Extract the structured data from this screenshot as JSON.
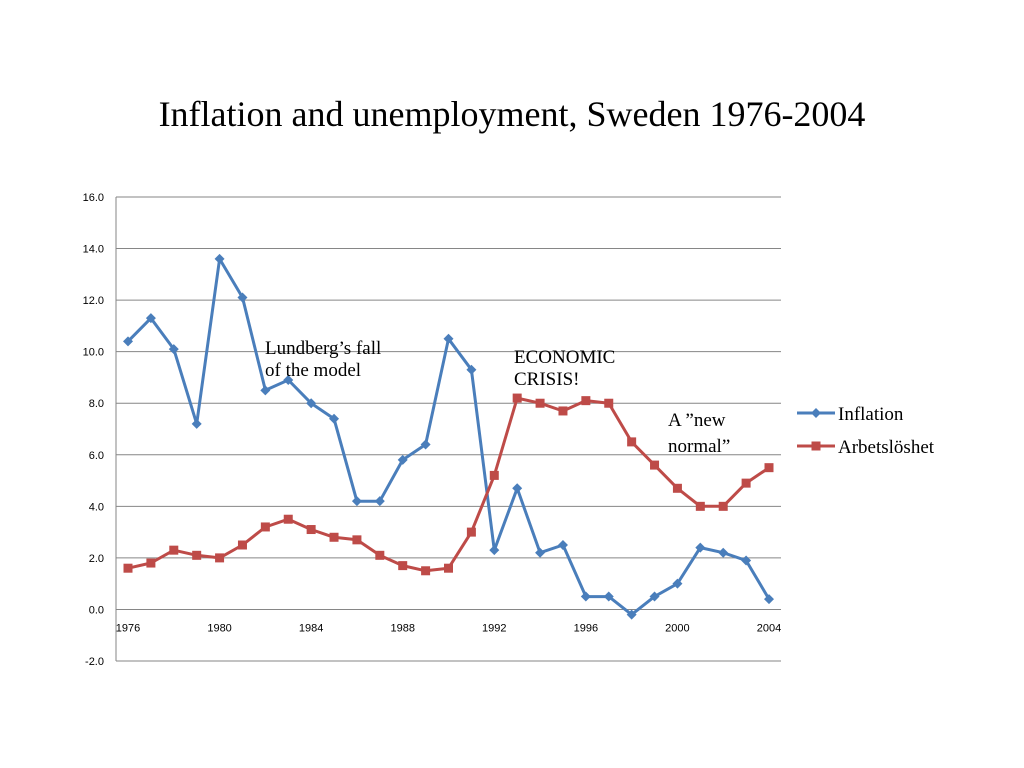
{
  "slide": {
    "title": "Inflation and unemployment, Sweden 1976-2004"
  },
  "chart_data": {
    "type": "line",
    "title": "Inflation and unemployment, Sweden 1976-2004",
    "xlabel": "",
    "ylabel": "",
    "x": [
      1976,
      1977,
      1978,
      1979,
      1980,
      1981,
      1982,
      1983,
      1984,
      1985,
      1986,
      1987,
      1988,
      1989,
      1990,
      1991,
      1992,
      1993,
      1994,
      1995,
      1996,
      1997,
      1998,
      1999,
      2000,
      2001,
      2002,
      2003,
      2004
    ],
    "x_tick_labels": [
      "1976",
      "1980",
      "1984",
      "1988",
      "1992",
      "1996",
      "2000",
      "2004"
    ],
    "y_tick_labels": [
      "-2.0",
      "0.0",
      "2.0",
      "4.0",
      "6.0",
      "8.0",
      "10.0",
      "12.0",
      "14.0",
      "16.0"
    ],
    "ylim": [
      -2,
      16
    ],
    "y_ticks": [
      -2,
      0,
      2,
      4,
      6,
      8,
      10,
      12,
      14,
      16
    ],
    "grid": "horizontal",
    "legend_position": "right",
    "series": [
      {
        "name": "Inflation",
        "color": "#4a7ebb",
        "marker": "diamond",
        "values": [
          10.4,
          11.3,
          10.1,
          7.2,
          13.6,
          12.1,
          8.5,
          8.9,
          8.0,
          7.4,
          4.2,
          4.2,
          5.8,
          6.4,
          10.5,
          9.3,
          2.3,
          4.7,
          2.2,
          2.5,
          0.5,
          0.5,
          -0.2,
          0.5,
          1.0,
          2.4,
          2.2,
          1.9,
          0.4
        ]
      },
      {
        "name": "Arbetslöshet",
        "color": "#be4b48",
        "marker": "square",
        "values": [
          1.6,
          1.8,
          2.3,
          2.1,
          2.0,
          2.5,
          3.2,
          3.5,
          3.1,
          2.8,
          2.7,
          2.1,
          1.7,
          1.5,
          1.6,
          3.0,
          5.2,
          8.2,
          8.0,
          7.7,
          8.1,
          8.0,
          6.5,
          5.6,
          4.7,
          4.0,
          4.0,
          4.9,
          5.5
        ]
      }
    ],
    "annotations": [
      {
        "lines": [
          "Lundberg’s fall",
          "of the model"
        ]
      },
      {
        "lines": [
          "ECONOMIC",
          "CRISIS!"
        ]
      },
      {
        "lines": [
          "A ”new",
          "normal”"
        ]
      }
    ]
  }
}
